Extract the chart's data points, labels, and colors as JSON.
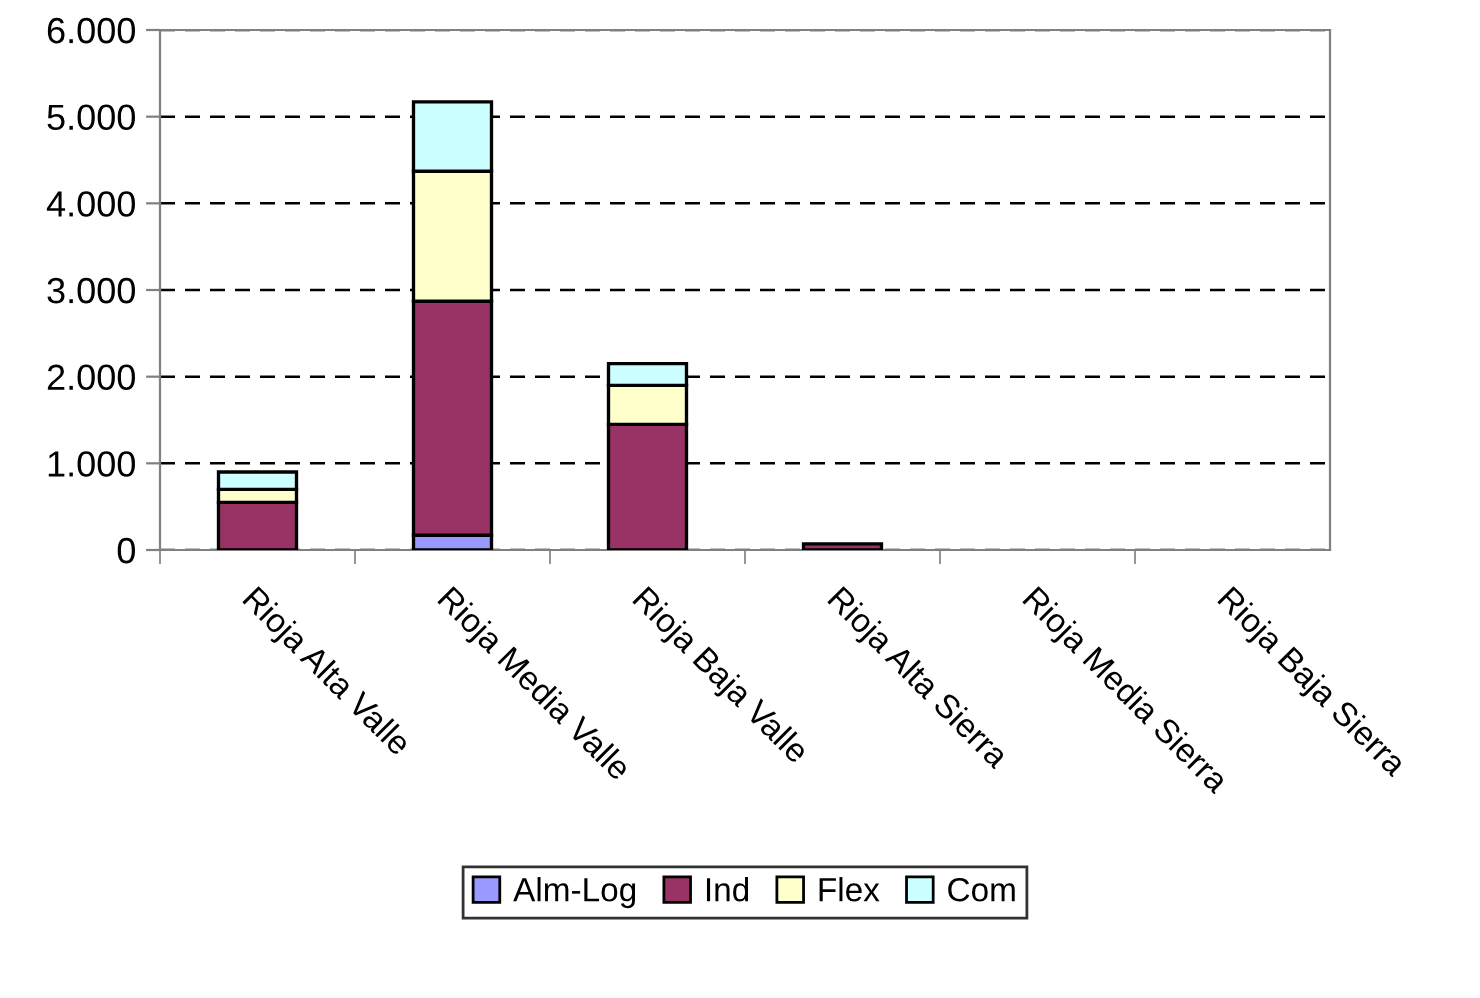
{
  "chart_data": {
    "type": "bar",
    "stacked": true,
    "categories": [
      "Rioja Alta Valle",
      "Rioja Media Valle",
      "Rioja Baja Valle",
      "Rioja Alta Sierra",
      "Rioja Media Sierra",
      "Rioja Baja Sierra"
    ],
    "series": [
      {
        "name": "Alm-Log",
        "color": "#9999ff",
        "values": [
          null,
          170,
          null,
          null,
          null,
          null
        ]
      },
      {
        "name": "Ind",
        "color": "#993366",
        "values": [
          550,
          2700,
          1450,
          70,
          null,
          null
        ]
      },
      {
        "name": "Flex",
        "color": "#ffffcc",
        "values": [
          150,
          1500,
          450,
          null,
          null,
          null
        ]
      },
      {
        "name": "Com",
        "color": "#ccffff",
        "values": [
          200,
          800,
          250,
          null,
          null,
          null
        ]
      }
    ],
    "ylim": [
      0,
      6000
    ],
    "yticks": [
      {
        "value": 0,
        "label": "0"
      },
      {
        "value": 1000,
        "label": "1.000"
      },
      {
        "value": 2000,
        "label": "2.000"
      },
      {
        "value": 3000,
        "label": "3.000"
      },
      {
        "value": 4000,
        "label": "4.000"
      },
      {
        "value": 5000,
        "label": "5.000"
      },
      {
        "value": 6000,
        "label": "6.000"
      }
    ],
    "grid": "y",
    "legend": "bottom"
  }
}
